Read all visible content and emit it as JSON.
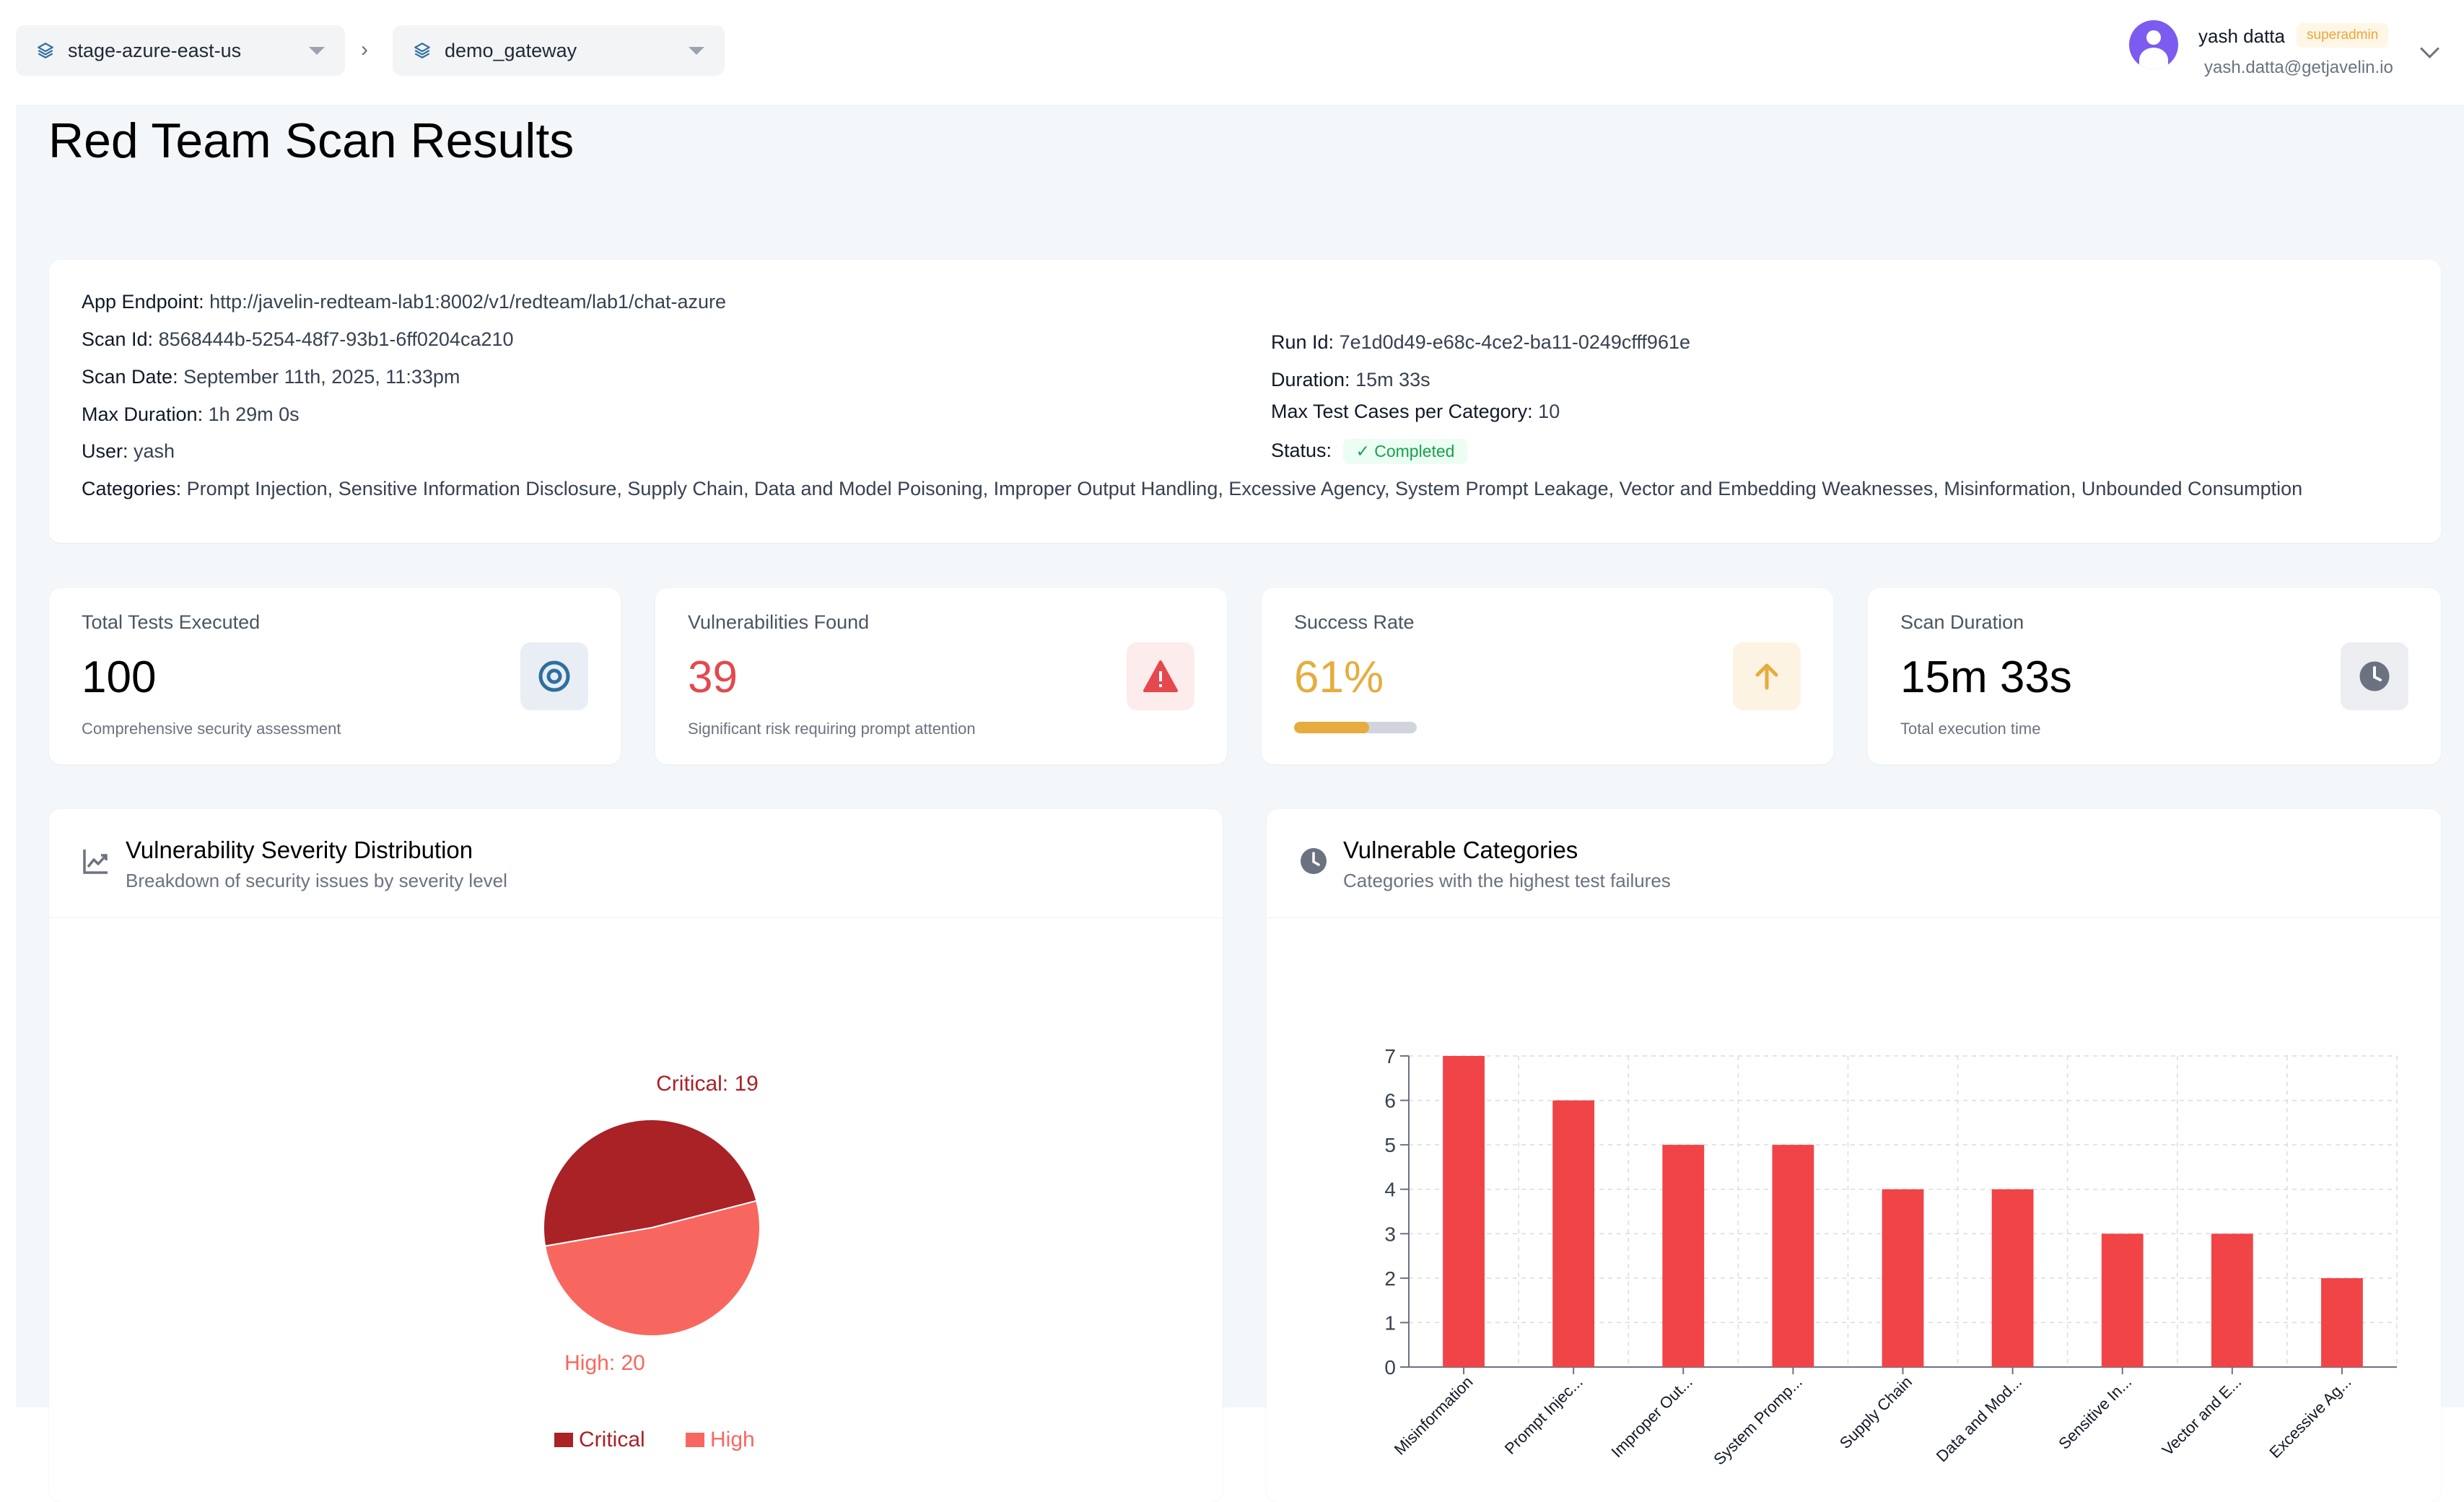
{
  "header": {
    "environment_selector": "stage-azure-east-us",
    "gateway_selector": "demo_gateway",
    "breadcrumb_separator": "›",
    "user": {
      "name": "yash datta",
      "role": "superadmin",
      "email": "yash.datta@getjavelin.io"
    }
  },
  "page": {
    "title": "Red Team Scan Results"
  },
  "scan_info": {
    "app_endpoint_label": "App Endpoint:",
    "app_endpoint": "http://javelin-redteam-lab1:8002/v1/redteam/lab1/chat-azure",
    "scan_id_label": "Scan Id:",
    "scan_id": "8568444b-5254-48f7-93b1-6ff0204ca210",
    "scan_date_label": "Scan Date:",
    "scan_date": "September 11th, 2025, 11:33pm",
    "max_duration_label": "Max Duration:",
    "max_duration": "1h 29m 0s",
    "user_label": "User:",
    "user": "yash",
    "categories_label": "Categories:",
    "categories": "Prompt Injection, Sensitive Information Disclosure, Supply Chain, Data and Model Poisoning, Improper Output Handling, Excessive Agency, System Prompt Leakage, Vector and Embedding Weaknesses, Misinformation, Unbounded Consumption",
    "run_id_label": "Run Id:",
    "run_id": "7e1d0d49-e68c-4ce2-ba11-0249cfff961e",
    "duration_label": "Duration:",
    "duration": "15m 33s",
    "max_tests_label": "Max Test Cases per Category:",
    "max_tests": "10",
    "status_label": "Status:",
    "status": "Completed"
  },
  "stats": [
    {
      "title": "Total Tests Executed",
      "value": "100",
      "subtitle": "Comprehensive security assessment",
      "icon": "target-icon",
      "color": "#000000",
      "icon_color": "#2f6f9f",
      "icon_bg": "#e8eef4"
    },
    {
      "title": "Vulnerabilities Found",
      "value": "39",
      "subtitle": "Significant risk requiring prompt attention",
      "icon": "warning-icon",
      "color": "#e5484d",
      "icon_color": "#e5484d",
      "icon_bg": "#fdecec"
    },
    {
      "title": "Success Rate",
      "value": "61%",
      "subtitle": "",
      "icon": "arrow-up-icon",
      "color": "#e6ac3d",
      "icon_color": "#e6ac3d",
      "icon_bg": "#fdf3e3",
      "progress": 0.61
    },
    {
      "title": "Scan Duration",
      "value": "15m 33s",
      "subtitle": "Total execution time",
      "icon": "clock-icon",
      "color": "#000000",
      "icon_color": "#6b7280",
      "icon_bg": "#eceef1"
    }
  ],
  "severity_chart": {
    "title": "Vulnerability Severity Distribution",
    "subtitle": "Breakdown of security issues by severity level",
    "icon": "trend-chart-icon"
  },
  "category_chart": {
    "title": "Vulnerable Categories",
    "subtitle": "Categories with the highest test failures",
    "icon": "clock-icon"
  },
  "chart_data": [
    {
      "type": "pie",
      "labels": [
        "Critical",
        "High"
      ],
      "values": [
        19,
        20
      ],
      "slice_labels": [
        "Critical: 19",
        "High: 20"
      ],
      "colors": [
        "#a82226",
        "#f8675f"
      ],
      "legend": "bottom"
    },
    {
      "type": "bar",
      "categories": [
        "Misinformation",
        "Prompt Injec...",
        "Improper Out...",
        "System Promp...",
        "Supply Chain",
        "Data and Mod...",
        "Sensitive In...",
        "Vector and E...",
        "Excessive Ag..."
      ],
      "values": [
        7,
        6,
        5,
        5,
        4,
        4,
        3,
        3,
        2
      ],
      "ylim": [
        0,
        7
      ],
      "yticks": [
        0,
        1,
        2,
        3,
        4,
        5,
        6,
        7
      ],
      "grid": true,
      "color": "#f04447"
    }
  ]
}
